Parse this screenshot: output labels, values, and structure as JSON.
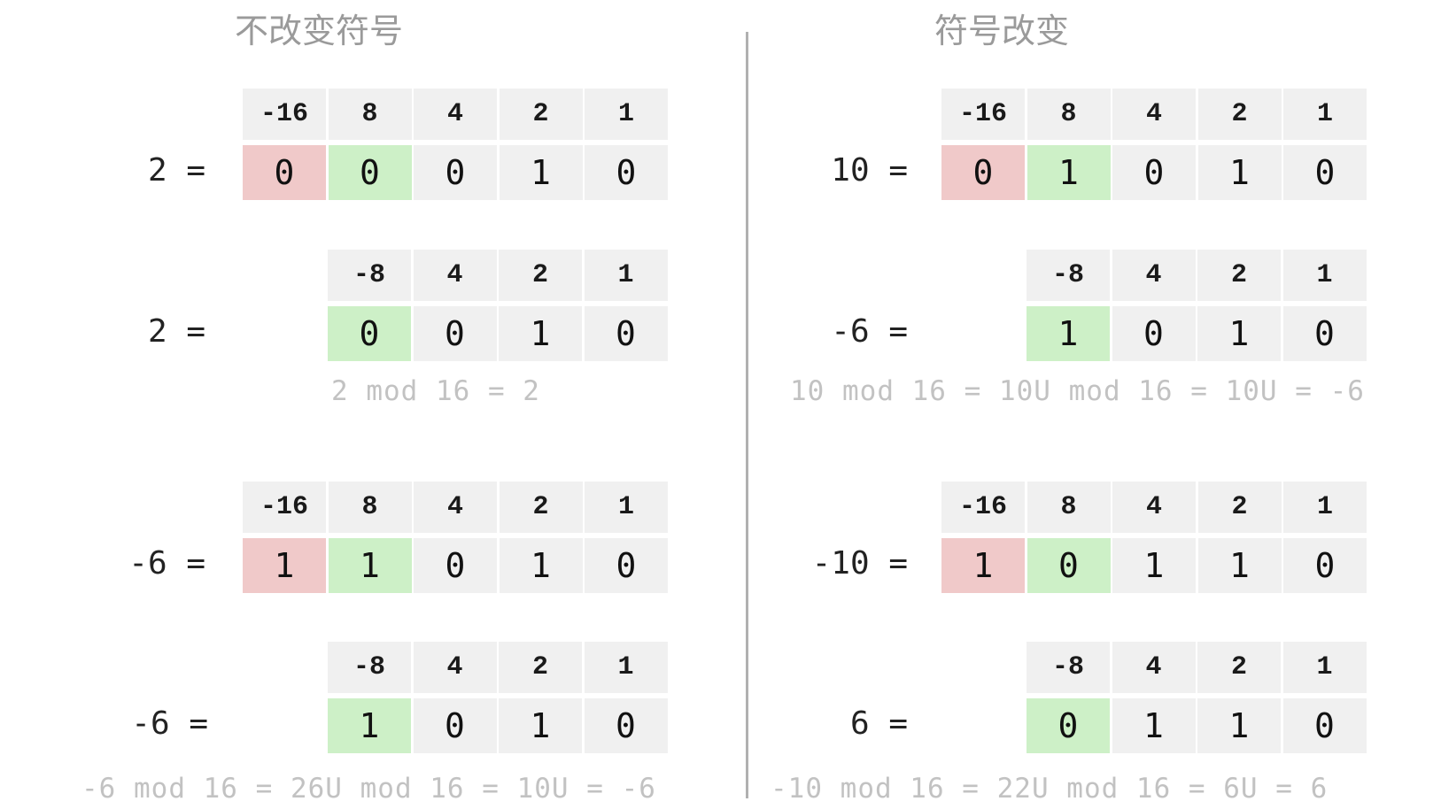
{
  "headings": {
    "left": "不改变符号",
    "right": "符号改变"
  },
  "colors": {
    "sign_bit": "#f0c9c9",
    "top_bit": "#cdf0c7",
    "cell": "#f0f0f0",
    "note": "#c2c2c2",
    "divider": "#b0b0b0"
  },
  "blocks": [
    {
      "lhs": "2 =",
      "weights": [
        "-16",
        "8",
        "4",
        "2",
        "1"
      ],
      "bits": [
        "0",
        "0",
        "0",
        "1",
        "0"
      ]
    },
    {
      "lhs": "2 =",
      "weights": [
        "-8",
        "4",
        "2",
        "1"
      ],
      "bits": [
        "0",
        "0",
        "1",
        "0"
      ]
    },
    {
      "lhs": "-6 =",
      "weights": [
        "-16",
        "8",
        "4",
        "2",
        "1"
      ],
      "bits": [
        "1",
        "1",
        "0",
        "1",
        "0"
      ]
    },
    {
      "lhs": "-6 =",
      "weights": [
        "-8",
        "4",
        "2",
        "1"
      ],
      "bits": [
        "1",
        "0",
        "1",
        "0"
      ]
    },
    {
      "lhs": "10 =",
      "weights": [
        "-16",
        "8",
        "4",
        "2",
        "1"
      ],
      "bits": [
        "0",
        "1",
        "0",
        "1",
        "0"
      ]
    },
    {
      "lhs": "-6 =",
      "weights": [
        "-8",
        "4",
        "2",
        "1"
      ],
      "bits": [
        "1",
        "0",
        "1",
        "0"
      ]
    },
    {
      "lhs": "-10 =",
      "weights": [
        "-16",
        "8",
        "4",
        "2",
        "1"
      ],
      "bits": [
        "1",
        "0",
        "1",
        "1",
        "0"
      ]
    },
    {
      "lhs": "6 =",
      "weights": [
        "-8",
        "4",
        "2",
        "1"
      ],
      "bits": [
        "0",
        "1",
        "1",
        "0"
      ]
    }
  ],
  "notes": [
    "2 mod 16 = 2",
    "-6 mod 16 = 26U mod 16 = 10U = -6",
    "10 mod 16 = 10U mod 16 = 10U = -6",
    "-10 mod 16 = 22U mod 16 = 6U = 6"
  ]
}
